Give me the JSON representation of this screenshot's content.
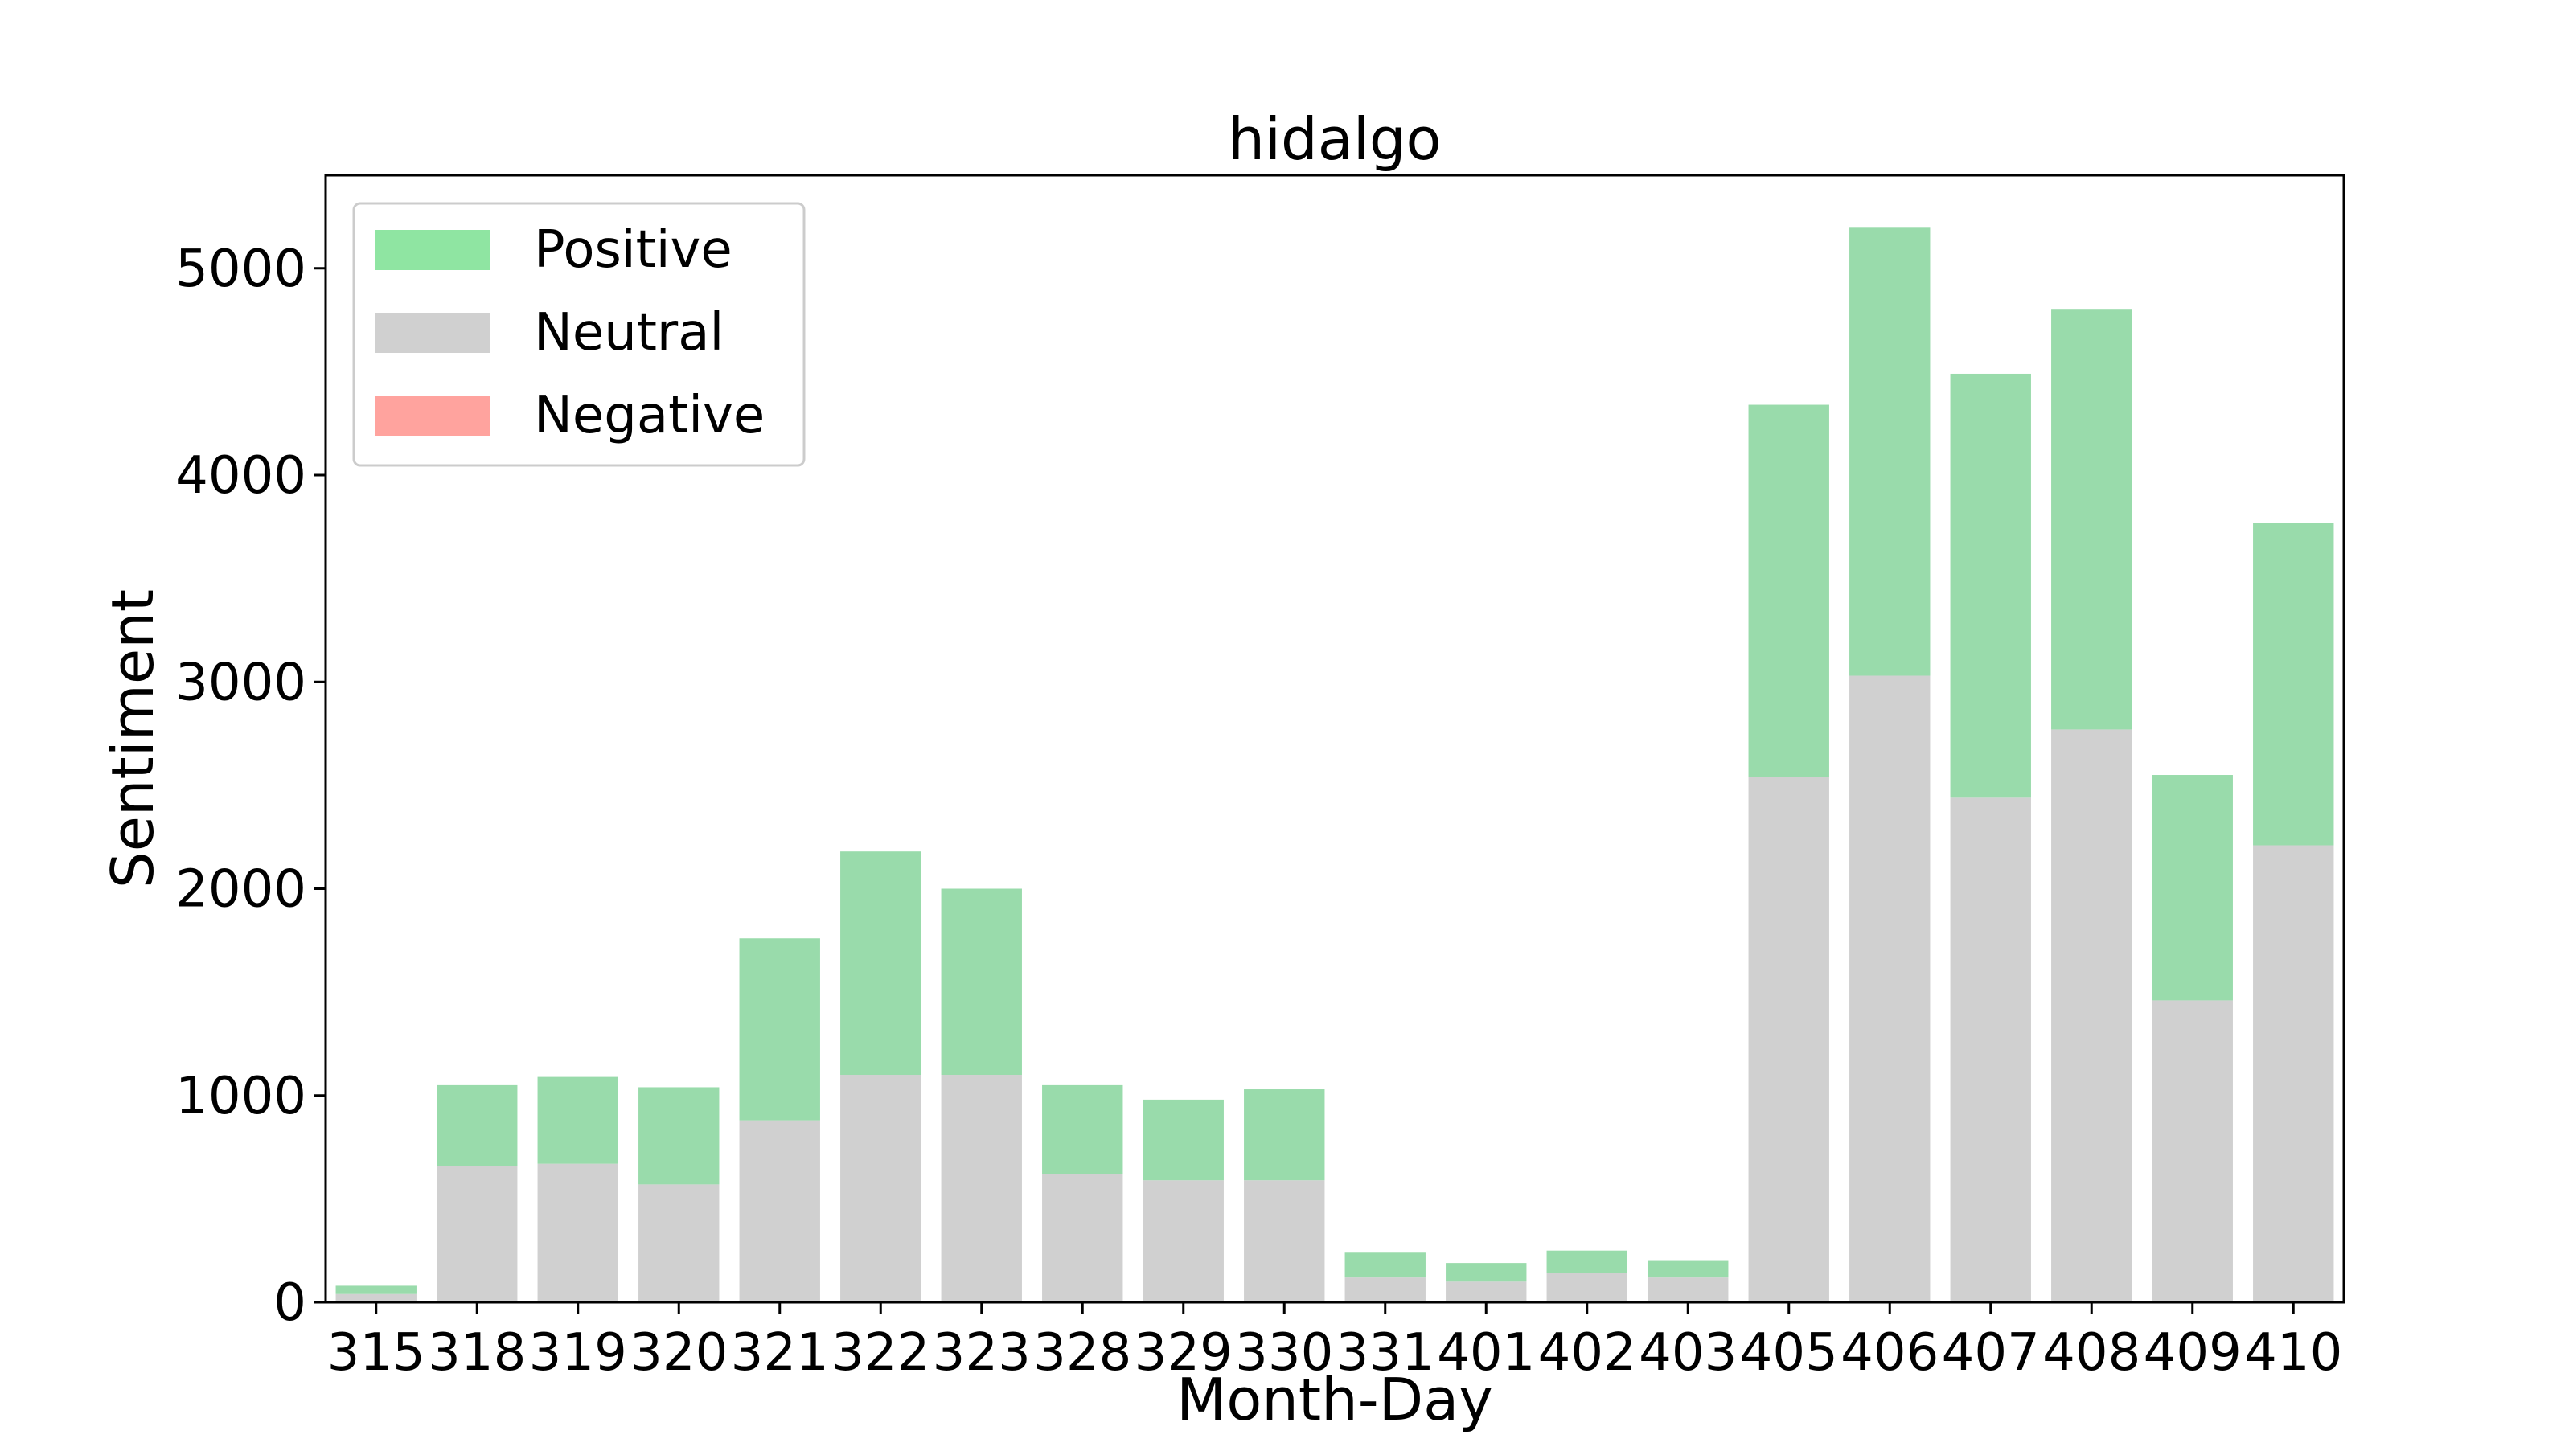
{
  "chart_data": {
    "type": "bar",
    "stacked": true,
    "title": "hidalgo",
    "xlabel": "Month-Day",
    "ylabel": "Sentiment",
    "ylim": [
      0,
      5450
    ],
    "yticks": [
      0,
      1000,
      2000,
      3000,
      4000,
      5000
    ],
    "categories": [
      "315",
      "318",
      "319",
      "320",
      "321",
      "322",
      "323",
      "328",
      "329",
      "330",
      "331",
      "401",
      "402",
      "403",
      "405",
      "406",
      "407",
      "408",
      "409",
      "410"
    ],
    "series": [
      {
        "name": "Neutral",
        "color": "#d0d0d0",
        "values": [
          40,
          660,
          670,
          570,
          880,
          1100,
          1100,
          620,
          590,
          590,
          120,
          100,
          140,
          120,
          2540,
          3030,
          2440,
          2770,
          1460,
          2210
        ]
      },
      {
        "name": "Positive",
        "color": "#99dbab",
        "values": [
          40,
          390,
          420,
          470,
          880,
          1080,
          900,
          430,
          390,
          440,
          120,
          90,
          110,
          80,
          1800,
          2170,
          2050,
          2030,
          1090,
          1560
        ]
      },
      {
        "name": "Negative",
        "color": "#ffa39e",
        "values": [
          0,
          0,
          0,
          0,
          0,
          0,
          0,
          0,
          0,
          0,
          0,
          0,
          0,
          0,
          0,
          0,
          0,
          0,
          0,
          0
        ]
      }
    ],
    "legend": {
      "placement": "top-left",
      "order": [
        "Positive",
        "Neutral",
        "Negative"
      ],
      "swatch_colors": {
        "Positive": "#8fe5a2",
        "Neutral": "#d0d0d0",
        "Negative": "#ffa39e"
      }
    },
    "grid": false
  }
}
